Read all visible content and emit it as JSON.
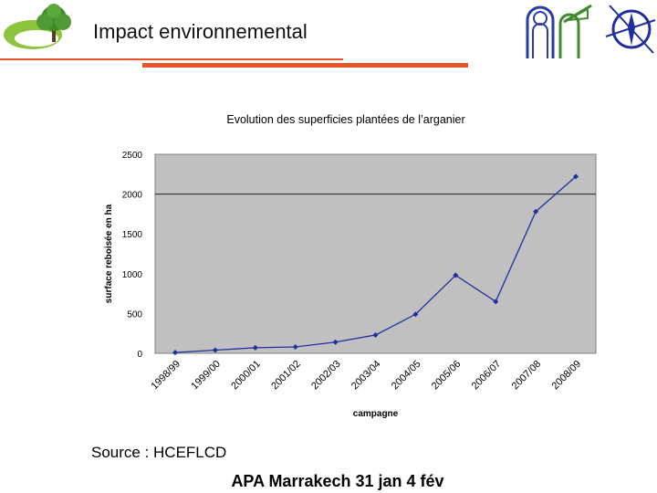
{
  "header": {
    "title": "Impact environnemental"
  },
  "logos": {
    "left": "tree-logo-icon",
    "right1": "arch-window-logo-icon",
    "right2": "compass-logo-icon"
  },
  "colors": {
    "accent_rule": "#e8542a",
    "plot_area": "#c0c0c0",
    "series": "#1f2f9e",
    "tree_green": "#3f8a2a"
  },
  "chart_data": {
    "type": "line",
    "title": "Evolution des superficies plantées de l’arganier",
    "xlabel": "campagne",
    "ylabel": "surface reboisée en ha",
    "categories": [
      "1998/99",
      "1999/00",
      "2000/01",
      "2001/02",
      "2002/03",
      "2003/04",
      "2004/05",
      "2005/06",
      "2006/07",
      "2007/08",
      "2008/09"
    ],
    "series": [
      {
        "values": [
          10,
          40,
          70,
          80,
          140,
          230,
          490,
          980,
          650,
          1780,
          2220
        ]
      }
    ],
    "ylim": [
      0,
      2500
    ],
    "yticks": [
      "0",
      "500",
      "1000",
      "1500",
      "2000",
      "2500"
    ],
    "grid": "horizontal line at 2000",
    "legend": "none"
  },
  "source": "Source : HCEFLCD",
  "footer": "APA Marrakech 31 jan 4 fév"
}
